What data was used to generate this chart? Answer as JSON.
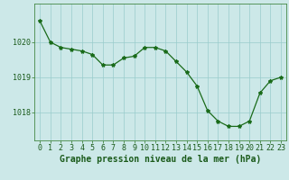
{
  "x": [
    0,
    1,
    2,
    3,
    4,
    5,
    6,
    7,
    8,
    9,
    10,
    11,
    12,
    13,
    14,
    15,
    16,
    17,
    18,
    19,
    20,
    21,
    22,
    23
  ],
  "y": [
    1020.6,
    1020.0,
    1019.85,
    1019.8,
    1019.75,
    1019.65,
    1019.35,
    1019.35,
    1019.55,
    1019.6,
    1019.85,
    1019.85,
    1019.75,
    1019.45,
    1019.15,
    1018.75,
    1018.05,
    1017.75,
    1017.6,
    1017.6,
    1017.75,
    1018.55,
    1018.9,
    1019.0
  ],
  "line_color": "#1a6b1a",
  "marker": "*",
  "marker_size": 3,
  "bg_color": "#cce8e8",
  "grid_color": "#99cccc",
  "xlabel": "Graphe pression niveau de la mer (hPa)",
  "xlabel_fontsize": 7,
  "xlabel_fontweight": "bold",
  "xlabel_color": "#1a5a1a",
  "tick_color": "#1a5a1a",
  "tick_fontsize": 6,
  "ytick_labels": [
    "1018",
    "1019",
    "1020"
  ],
  "ytick_values": [
    1018,
    1019,
    1020
  ],
  "ylim": [
    1017.2,
    1021.1
  ],
  "xlim": [
    -0.5,
    23.5
  ],
  "spine_color": "#448844"
}
